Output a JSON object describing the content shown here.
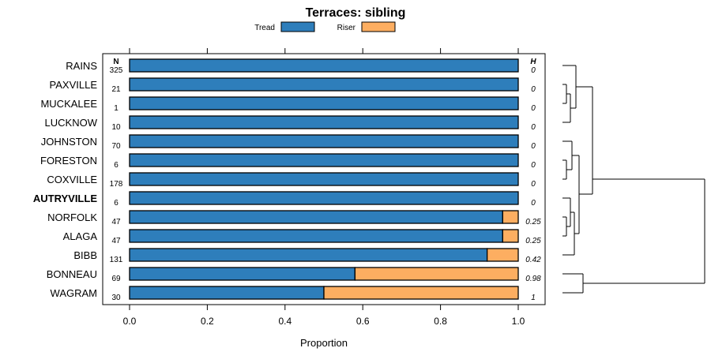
{
  "chart_data": {
    "type": "bar",
    "stacked": true,
    "orientation": "horizontal",
    "title": "Terraces: sibling",
    "xlabel": "Proportion",
    "ylabel": "",
    "xlim": [
      0,
      1
    ],
    "xticks": [
      "0.0",
      "0.2",
      "0.4",
      "0.6",
      "0.8",
      "1.0"
    ],
    "xtick_values": [
      0,
      0.2,
      0.4,
      0.6,
      0.8,
      1.0
    ],
    "n_header": "N",
    "h_header": "H",
    "legend": [
      {
        "name": "Tread",
        "color": "#2E7EBB"
      },
      {
        "name": "Riser",
        "color": "#FDAE61"
      }
    ],
    "categories": [
      "RAINS",
      "PAXVILLE",
      "MUCKALEE",
      "LUCKNOW",
      "JOHNSTON",
      "FORESTON",
      "COXVILLE",
      "AUTRYVILLE",
      "NORFOLK",
      "ALAGA",
      "BIBB",
      "BONNEAU",
      "WAGRAM"
    ],
    "highlight": "AUTRYVILLE",
    "series": [
      {
        "name": "Tread",
        "values": [
          1,
          1,
          1,
          1,
          1,
          1,
          1,
          1,
          0.96,
          0.96,
          0.92,
          0.58,
          0.5
        ]
      },
      {
        "name": "Riser",
        "values": [
          0,
          0,
          0,
          0,
          0,
          0,
          0,
          0,
          0.04,
          0.04,
          0.08,
          0.42,
          0.5
        ]
      }
    ],
    "n": [
      "325",
      "21",
      "1",
      "10",
      "70",
      "6",
      "178",
      "6",
      "47",
      "47",
      "131",
      "69",
      "30"
    ],
    "h": [
      "0",
      "0",
      "0",
      "0",
      "0",
      "0",
      "0",
      "0",
      "0.25",
      "0.25",
      "0.42",
      "0.98",
      "1"
    ]
  }
}
